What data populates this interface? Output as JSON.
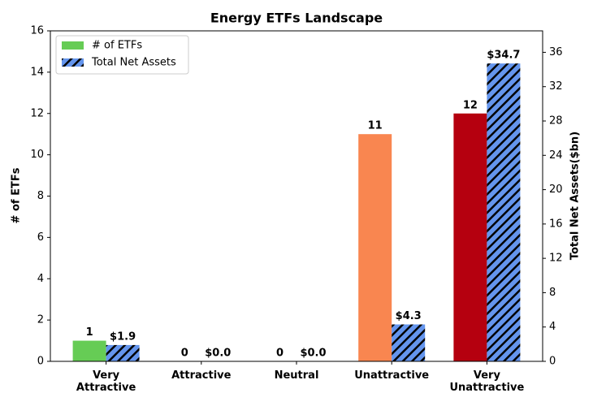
{
  "chart_data": {
    "type": "bar",
    "title": "Energy ETFs Landscape",
    "categories": [
      "Very\nAttractive",
      "Attractive",
      "Neutral",
      "Unattractive",
      "Very\nUnattractive"
    ],
    "series": [
      {
        "name": "# of ETFs",
        "colors": [
          "#66cc55",
          "#66cc55",
          "#66cc55",
          "#f98650",
          "#b5000f"
        ],
        "values": [
          1,
          0,
          0,
          11,
          12
        ]
      },
      {
        "name": "Total Net Assets",
        "color": "#6495ed",
        "hatch": true,
        "axis": "y2",
        "values": [
          1.9,
          0,
          0,
          4.3,
          34.7
        ],
        "value_labels": [
          "$1.9",
          "$0.0",
          "$0.0",
          "$4.3",
          "$34.7"
        ]
      }
    ],
    "ylabel": "# of ETFs",
    "y2label": "Total Net Assets($bn)",
    "ylim": [
      0,
      16
    ],
    "yticks": [
      0,
      2,
      4,
      6,
      8,
      10,
      12,
      14,
      16
    ],
    "y2lim": [
      0,
      38.5
    ],
    "y2ticks": [
      0,
      4,
      8,
      12,
      16,
      20,
      24,
      28,
      32,
      36
    ],
    "legend": "upper left"
  }
}
